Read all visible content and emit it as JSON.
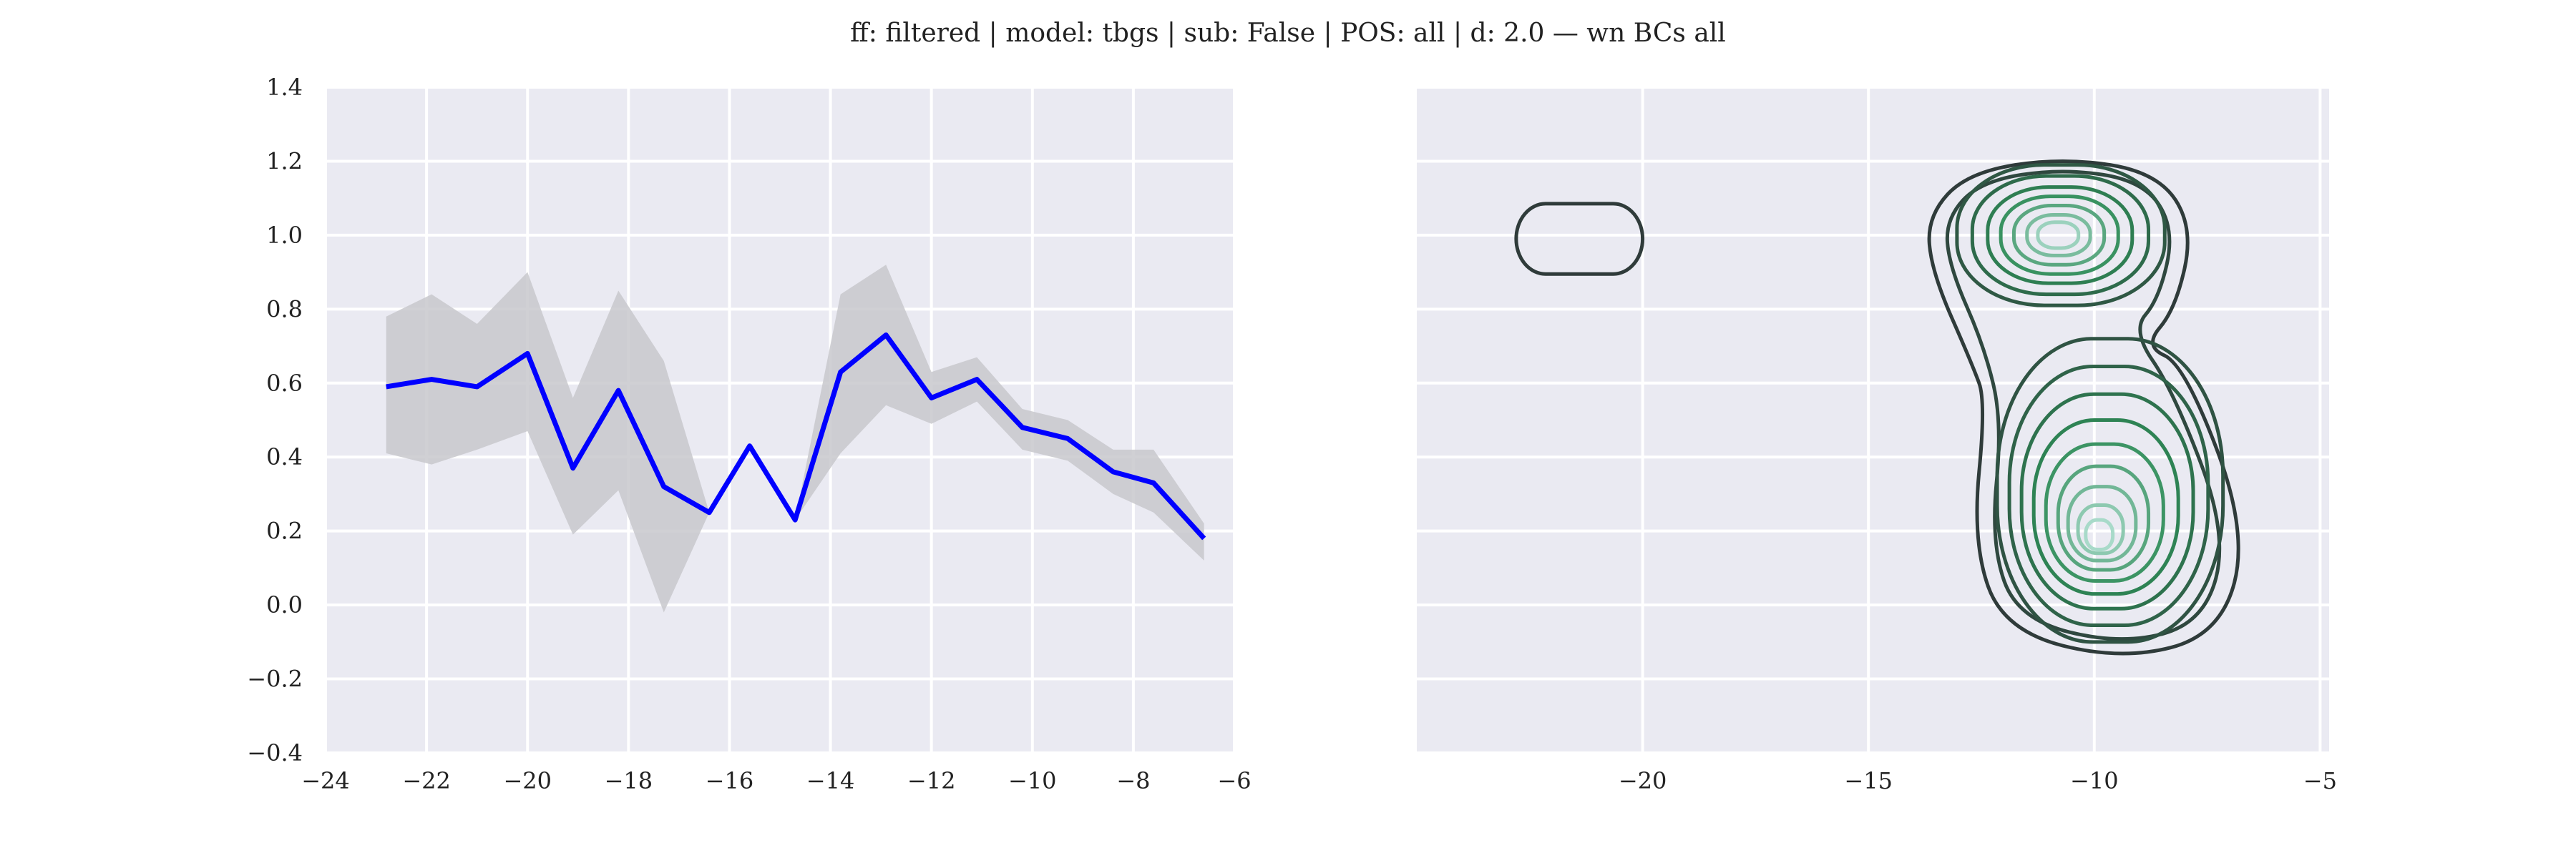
{
  "title": "ff: filtered | model: tbgs | sub: False | POS: all | d: 2.0 — wn BCs all",
  "colors": {
    "axes_bg": "#eaeaf2",
    "grid": "#ffffff",
    "line": "#0000ff",
    "band": "#c8c8cc",
    "contour_dark": "#2f3b3a",
    "contour_light": "#b6e3d6"
  },
  "chart_data": [
    {
      "type": "line",
      "xlim": [
        -24,
        -6
      ],
      "ylim": [
        -0.4,
        1.4
      ],
      "x_ticks": [
        -24,
        -22,
        -20,
        -18,
        -16,
        -14,
        -12,
        -10,
        -8,
        -6
      ],
      "y_ticks": [
        -0.4,
        -0.2,
        0.0,
        0.2,
        0.4,
        0.6,
        0.8,
        1.0,
        1.2,
        1.4
      ],
      "x_tick_labels": [
        "−24",
        "−22",
        "−20",
        "−18",
        "−16",
        "−14",
        "−12",
        "−10",
        "−8",
        "−6"
      ],
      "y_tick_labels": [
        "−0.4",
        "−0.2",
        "0.0",
        "0.2",
        "0.4",
        "0.6",
        "0.8",
        "1.0",
        "1.2",
        "1.4"
      ],
      "grid": true,
      "series": [
        {
          "x": [
            -22.8,
            -21.9,
            -21.0,
            -20.0,
            -19.1,
            -18.2,
            -17.3,
            -16.4,
            -15.6,
            -14.7,
            -13.8,
            -12.9,
            -12.0,
            -11.1,
            -10.2,
            -9.3,
            -8.4,
            -7.6,
            -6.6
          ],
          "y": [
            0.59,
            0.61,
            0.59,
            0.68,
            0.37,
            0.58,
            0.32,
            0.25,
            0.43,
            0.23,
            0.63,
            0.73,
            0.56,
            0.61,
            0.48,
            0.45,
            0.36,
            0.33,
            0.18
          ],
          "lower": [
            0.41,
            0.38,
            0.42,
            0.47,
            0.19,
            0.31,
            -0.02,
            0.25,
            0.43,
            0.23,
            0.41,
            0.54,
            0.49,
            0.55,
            0.42,
            0.39,
            0.3,
            0.25,
            0.12
          ],
          "upper": [
            0.78,
            0.84,
            0.76,
            0.9,
            0.56,
            0.85,
            0.66,
            0.25,
            0.43,
            0.23,
            0.84,
            0.92,
            0.63,
            0.67,
            0.53,
            0.5,
            0.42,
            0.42,
            0.22
          ]
        }
      ]
    },
    {
      "type": "contour",
      "xlim": [
        -25,
        -4.8
      ],
      "ylim": [
        -0.4,
        1.4
      ],
      "x_ticks": [
        -20,
        -15,
        -10,
        -5
      ],
      "x_tick_labels": [
        "−20",
        "−15",
        "−10",
        "−5"
      ],
      "y_ticks": [
        -0.4,
        -0.2,
        0.0,
        0.2,
        0.4,
        0.6,
        0.8,
        1.0,
        1.2,
        1.4
      ],
      "grid": true,
      "levels": 9,
      "small_mode": {
        "x": -21.4,
        "y": 0.99
      },
      "upper_mode": {
        "x": -10.8,
        "y": 1.0
      },
      "lower_mode": {
        "x": -9.8,
        "y": 0.15
      }
    }
  ]
}
